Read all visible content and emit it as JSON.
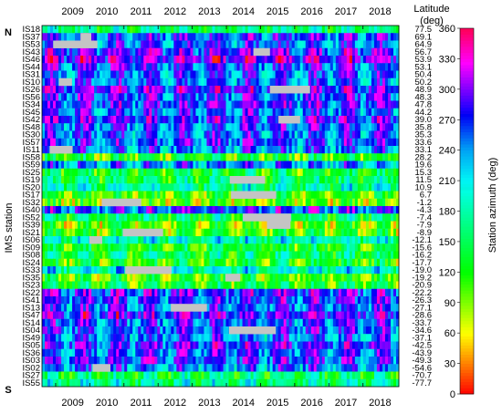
{
  "chart_data": {
    "type": "heatmap",
    "title": "",
    "xlabel": "",
    "ylabel": "IMS station",
    "right_axis_label": [
      "Latitude",
      "(deg)"
    ],
    "colorbar_label": "Station azimuth (deg)",
    "north_marker": "N",
    "south_marker": "S",
    "xlim": [
      2008.6,
      2019.05
    ],
    "x_ticks": [
      "2009",
      "2010",
      "2011",
      "2012",
      "2013",
      "2014",
      "2015",
      "2016",
      "2017",
      "2018"
    ],
    "colorbar_ticks": [
      "0",
      "30",
      "60",
      "90",
      "120",
      "150",
      "180",
      "210",
      "240",
      "270",
      "300",
      "330",
      "360"
    ],
    "colorbar_range": [
      0,
      360
    ],
    "stations": [
      {
        "name": "IS18",
        "lat": "77.5",
        "az": 160
      },
      {
        "name": "IS37",
        "lat": "69.1",
        "az": 265
      },
      {
        "name": "IS53",
        "lat": "64.9",
        "az": 255
      },
      {
        "name": "IS43",
        "lat": "56.7",
        "az": 285
      },
      {
        "name": "IS46",
        "lat": "53.9",
        "az": 300
      },
      {
        "name": "IS44",
        "lat": "53.1",
        "az": 270
      },
      {
        "name": "IS31",
        "lat": "50.4",
        "az": 255
      },
      {
        "name": "IS10",
        "lat": "50.2",
        "az": 250
      },
      {
        "name": "IS26",
        "lat": "48.9",
        "az": 290
      },
      {
        "name": "IS56",
        "lat": "48.3",
        "az": 270
      },
      {
        "name": "IS34",
        "lat": "47.8",
        "az": 275
      },
      {
        "name": "IS45",
        "lat": "44.2",
        "az": 260
      },
      {
        "name": "IS42",
        "lat": "39.0",
        "az": 280
      },
      {
        "name": "IS48",
        "lat": "35.8",
        "az": 260
      },
      {
        "name": "IS30",
        "lat": "35.3",
        "az": 255
      },
      {
        "name": "IS57",
        "lat": "33.6",
        "az": 265
      },
      {
        "name": "IS11",
        "lat": "33.1",
        "az": 245
      },
      {
        "name": "IS58",
        "lat": "28.2",
        "az": 120
      },
      {
        "name": "IS59",
        "lat": "19.6",
        "az": 240
      },
      {
        "name": "IS25",
        "lat": "15.3",
        "az": 130
      },
      {
        "name": "IS19",
        "lat": "11.5",
        "az": 150
      },
      {
        "name": "IS20",
        "lat": "10.9",
        "az": 180
      },
      {
        "name": "IS17",
        "lat": "6.7",
        "az": 110
      },
      {
        "name": "IS32",
        "lat": "-1.2",
        "az": 95
      },
      {
        "name": "IS40",
        "lat": "-4.3",
        "az": 270
      },
      {
        "name": "IS52",
        "lat": "-7.4",
        "az": 150
      },
      {
        "name": "IS39",
        "lat": "-7.9",
        "az": 100
      },
      {
        "name": "IS21",
        "lat": "-8.9",
        "az": 110
      },
      {
        "name": "IS06",
        "lat": "-12.1",
        "az": 190
      },
      {
        "name": "IS09",
        "lat": "-15.6",
        "az": 130
      },
      {
        "name": "IS08",
        "lat": "-16.2",
        "az": 150
      },
      {
        "name": "IS24",
        "lat": "-17.7",
        "az": 120
      },
      {
        "name": "IS33",
        "lat": "-19.0",
        "az": 200
      },
      {
        "name": "IS35",
        "lat": "-19.2",
        "az": 110
      },
      {
        "name": "IS23",
        "lat": "-20.9",
        "az": 130
      },
      {
        "name": "IS22",
        "lat": "-22.2",
        "az": 280
      },
      {
        "name": "IS41",
        "lat": "-26.3",
        "az": 270
      },
      {
        "name": "IS13",
        "lat": "-27.1",
        "az": 260
      },
      {
        "name": "IS47",
        "lat": "-28.6",
        "az": 290
      },
      {
        "name": "IS14",
        "lat": "-33.7",
        "az": 260
      },
      {
        "name": "IS04",
        "lat": "-34.6",
        "az": 265
      },
      {
        "name": "IS49",
        "lat": "-37.1",
        "az": 250
      },
      {
        "name": "IS05",
        "lat": "-42.5",
        "az": 280
      },
      {
        "name": "IS36",
        "lat": "-43.9",
        "az": 260
      },
      {
        "name": "IS03",
        "lat": "-49.3",
        "az": 270
      },
      {
        "name": "IS02",
        "lat": "-54.6",
        "az": 250
      },
      {
        "name": "IS27",
        "lat": "-70.7",
        "az": 150
      },
      {
        "name": "IS55",
        "lat": "-77.7",
        "az": 175
      }
    ]
  }
}
